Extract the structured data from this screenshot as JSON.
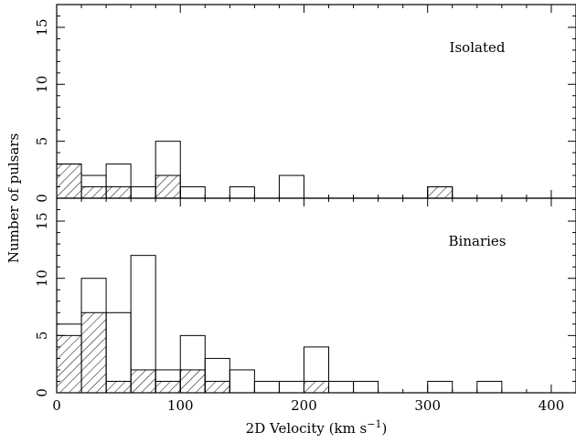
{
  "chart_data": {
    "type": "bar",
    "xlabel": "2D Velocity (km s",
    "xlabel_sup": "−1",
    "xlabel_close": ")",
    "ylabel": "Number of pulsars",
    "xlim": [
      0,
      420
    ],
    "x_ticks": [
      "0",
      "100",
      "200",
      "300",
      "400"
    ],
    "y_ticks": [
      "0",
      "5",
      "10",
      "15"
    ],
    "bin_edges": [
      0,
      20,
      40,
      60,
      80,
      100,
      120,
      140,
      160,
      180,
      200,
      220,
      240,
      260,
      280,
      300,
      320,
      340,
      360,
      380,
      400
    ],
    "panels": [
      {
        "label": "Isolated",
        "ylim": [
          0,
          17
        ],
        "series": [
          {
            "values": [
              3,
              2,
              3,
              1,
              5,
              1,
              0,
              1,
              0,
              2,
              0,
              0,
              0,
              0,
              0,
              1,
              0,
              0,
              0,
              0
            ],
            "style": "open"
          },
          {
            "values": [
              3,
              1,
              1,
              0,
              2,
              0,
              0,
              0,
              0,
              0,
              0,
              0,
              0,
              0,
              0,
              1,
              0,
              0,
              0,
              0
            ],
            "style": "hatched"
          }
        ]
      },
      {
        "label": "Binaries",
        "ylim": [
          0,
          17
        ],
        "series": [
          {
            "values": [
              6,
              10,
              7,
              12,
              2,
              5,
              3,
              2,
              1,
              1,
              4,
              1,
              1,
              0,
              0,
              1,
              0,
              1,
              0,
              0
            ],
            "style": "open"
          },
          {
            "values": [
              5,
              7,
              1,
              2,
              1,
              2,
              1,
              0,
              0,
              0,
              1,
              0,
              0,
              0,
              0,
              0,
              0,
              0,
              0,
              0
            ],
            "style": "hatched"
          }
        ]
      }
    ]
  }
}
